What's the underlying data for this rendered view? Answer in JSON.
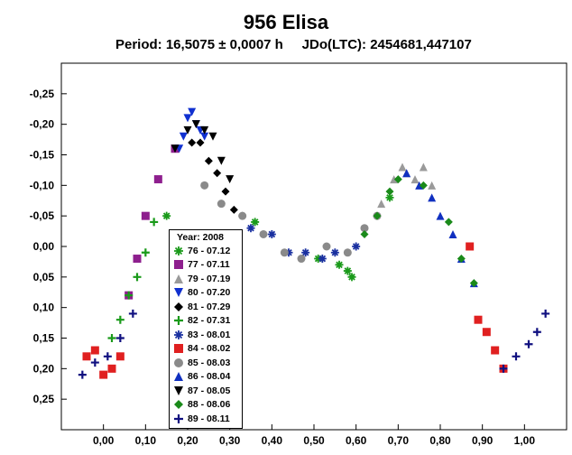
{
  "chart_data": {
    "type": "scatter",
    "title": "956 Elisa",
    "subtitle": "Period: 16,5075 ± 0,0007 h     JDo(LTC): 2454681,447107",
    "xlabel": "",
    "ylabel": "",
    "xlim": [
      -0.1,
      1.1
    ],
    "ylim": [
      0.3,
      -0.3
    ],
    "y_inverted": true,
    "grid": false,
    "legend_placement": "bottom-left",
    "x_ticks": [
      "0,00",
      "0,10",
      "0,20",
      "0,30",
      "0,40",
      "0,50",
      "0,60",
      "0,70",
      "0,80",
      "0,90",
      "1,00"
    ],
    "y_ticks": [
      "-0,25",
      "-0,20",
      "-0,15",
      "-0,10",
      "-0,05",
      "0,00",
      "0,05",
      "0,10",
      "0,15",
      "0,20",
      "0,25"
    ],
    "legend_title": "Year: 2008",
    "series": [
      {
        "name": "76 - 07.12",
        "marker": "star",
        "color": "#1a9a1a",
        "x": [
          0.15,
          0.36,
          0.51,
          0.56,
          0.58,
          0.59,
          0.68
        ],
        "y": [
          -0.05,
          -0.04,
          0.02,
          0.03,
          0.04,
          0.05,
          -0.08
        ]
      },
      {
        "name": "77 - 07.11",
        "marker": "square",
        "color": "#8e1f8e",
        "x": [
          0.06,
          0.08,
          0.1,
          0.13,
          0.17
        ],
        "y": [
          0.08,
          0.02,
          -0.05,
          -0.11,
          -0.16
        ]
      },
      {
        "name": "79 - 07.19",
        "marker": "triangle",
        "color": "#9a9a9a",
        "x": [
          0.66,
          0.69,
          0.71,
          0.72,
          0.74,
          0.76,
          0.78
        ],
        "y": [
          -0.07,
          -0.11,
          -0.13,
          -0.12,
          -0.11,
          -0.13,
          -0.1
        ]
      },
      {
        "name": "80 - 07.20",
        "marker": "triangle-down",
        "color": "#1030d0",
        "x": [
          0.18,
          0.19,
          0.2,
          0.21,
          0.22,
          0.23,
          0.24
        ],
        "y": [
          -0.16,
          -0.18,
          -0.21,
          -0.22,
          -0.2,
          -0.19,
          -0.18
        ]
      },
      {
        "name": "81 - 07.29",
        "marker": "diamond",
        "color": "#000000",
        "x": [
          0.21,
          0.23,
          0.25,
          0.27,
          0.29,
          0.31,
          0.33
        ],
        "y": [
          -0.17,
          -0.17,
          -0.14,
          -0.12,
          -0.09,
          -0.06,
          -0.05
        ]
      },
      {
        "name": "82 - 07.31",
        "marker": "plus",
        "color": "#1a9a1a",
        "x": [
          0.02,
          0.04,
          0.06,
          0.08,
          0.1,
          0.12
        ],
        "y": [
          0.15,
          0.12,
          0.08,
          0.05,
          0.01,
          -0.04
        ]
      },
      {
        "name": "83 - 08.01",
        "marker": "star",
        "color": "#1a30a0",
        "x": [
          0.35,
          0.4,
          0.44,
          0.48,
          0.52,
          0.55,
          0.6
        ],
        "y": [
          -0.03,
          -0.02,
          0.01,
          0.01,
          0.02,
          0.01,
          0.0
        ]
      },
      {
        "name": "84 - 08.02",
        "marker": "square",
        "color": "#e02020",
        "x": [
          -0.04,
          -0.02,
          0.0,
          0.02,
          0.04,
          0.87,
          0.89,
          0.91,
          0.93,
          0.95
        ],
        "y": [
          0.18,
          0.17,
          0.21,
          0.2,
          0.18,
          0.0,
          0.12,
          0.14,
          0.17,
          0.2
        ]
      },
      {
        "name": "85 - 08.03",
        "marker": "circle",
        "color": "#8a8a8a",
        "x": [
          0.24,
          0.28,
          0.33,
          0.38,
          0.43,
          0.47,
          0.53,
          0.58,
          0.62,
          0.65
        ],
        "y": [
          -0.1,
          -0.07,
          -0.05,
          -0.02,
          0.01,
          0.02,
          0.0,
          0.01,
          -0.03,
          -0.05
        ]
      },
      {
        "name": "86 - 08.04",
        "marker": "triangle",
        "color": "#1030c0",
        "x": [
          0.72,
          0.75,
          0.78,
          0.8,
          0.83,
          0.85,
          0.88
        ],
        "y": [
          -0.12,
          -0.1,
          -0.08,
          -0.05,
          -0.02,
          0.02,
          0.06
        ]
      },
      {
        "name": "87 - 08.05",
        "marker": "triangle-down",
        "color": "#000000",
        "x": [
          0.17,
          0.2,
          0.22,
          0.24,
          0.26,
          0.28,
          0.3
        ],
        "y": [
          -0.16,
          -0.19,
          -0.2,
          -0.19,
          -0.18,
          -0.14,
          -0.11
        ]
      },
      {
        "name": "88 - 08.06",
        "marker": "diamond",
        "color": "#1a8a1a",
        "x": [
          0.62,
          0.65,
          0.68,
          0.7,
          0.76,
          0.82,
          0.85,
          0.88
        ],
        "y": [
          -0.02,
          -0.05,
          -0.09,
          -0.11,
          -0.1,
          -0.04,
          0.02,
          0.06
        ]
      },
      {
        "name": "89 - 08.11",
        "marker": "plus",
        "color": "#101080",
        "x": [
          -0.05,
          -0.02,
          0.01,
          0.04,
          0.07,
          0.95,
          0.98,
          1.01,
          1.03,
          1.05
        ],
        "y": [
          0.21,
          0.19,
          0.18,
          0.15,
          0.11,
          0.2,
          0.18,
          0.16,
          0.14,
          0.11
        ]
      }
    ]
  }
}
